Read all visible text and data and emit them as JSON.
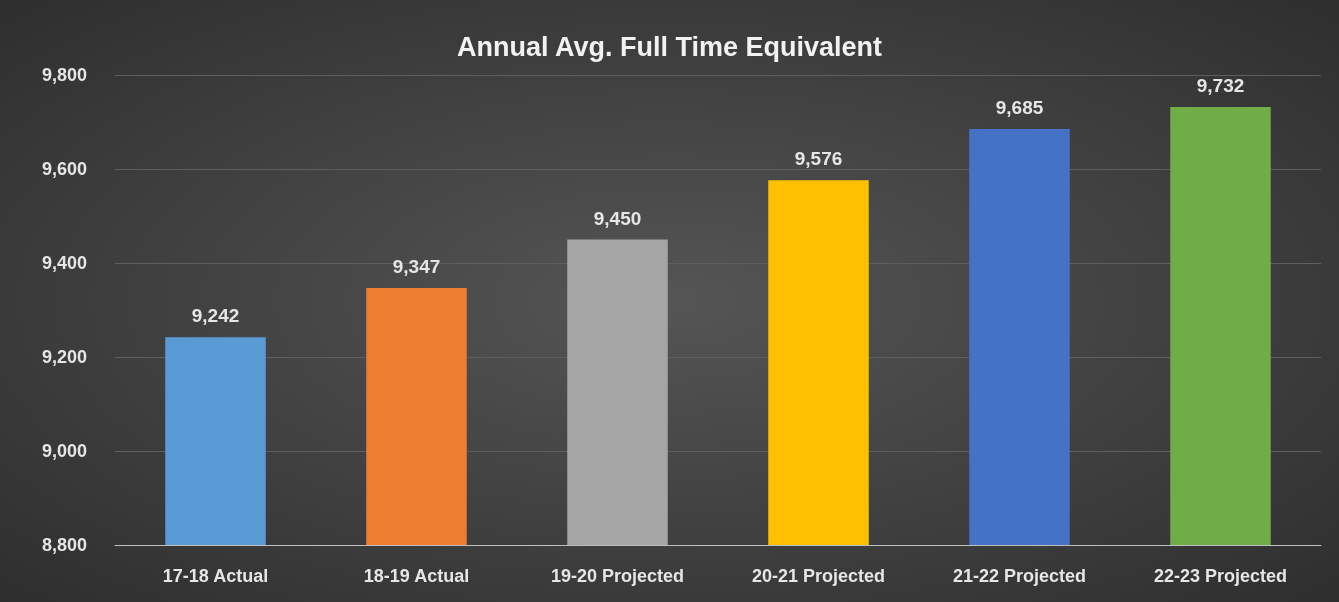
{
  "chart_data": {
    "type": "bar",
    "title": "Annual Avg. Full Time Equivalent",
    "categories": [
      "17-18 Actual",
      "18-19 Actual",
      "19-20 Projected",
      "20-21 Projected",
      "21-22 Projected",
      "22-23 Projected"
    ],
    "values": [
      9242,
      9347,
      9450,
      9576,
      9685,
      9732
    ],
    "value_labels": [
      "9,242",
      "9,347",
      "9,450",
      "9,576",
      "9,685",
      "9,732"
    ],
    "colors": [
      "#5b9bd5",
      "#ed7d31",
      "#a5a5a5",
      "#ffc000",
      "#4472c4",
      "#70ad47"
    ],
    "ylim": [
      8800,
      9800
    ],
    "yticks": [
      {
        "value": 8800,
        "label": "8,800"
      },
      {
        "value": 9000,
        "label": "9,000"
      },
      {
        "value": 9200,
        "label": "9,200"
      },
      {
        "value": 9400,
        "label": "9,400"
      },
      {
        "value": 9600,
        "label": "9,600"
      },
      {
        "value": 9800,
        "label": "9,800"
      }
    ],
    "grid": "y"
  }
}
